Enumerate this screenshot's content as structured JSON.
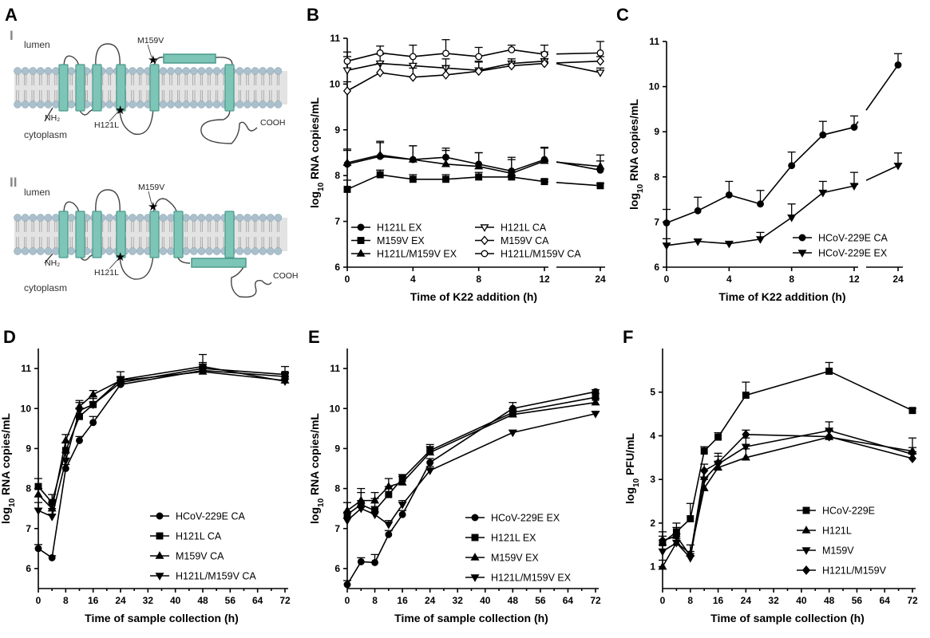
{
  "panel_labels": [
    "A",
    "B",
    "C",
    "D",
    "E",
    "F"
  ],
  "diagram": {
    "roman": [
      "I",
      "II"
    ],
    "lumen": "lumen",
    "cytoplasm": "cytoplasm",
    "nh2": "NH₂",
    "cooh": "COOH",
    "mut1": "M159V",
    "mut2": "H121L",
    "colors": {
      "helix": "#7dc5b7",
      "helix_dark": "#4b9a8c",
      "lipid_head": "#aac0cc",
      "star": "#e0207a"
    }
  },
  "chart_data": [
    {
      "id": "B",
      "type": "line",
      "panel": "B",
      "xlabel": "Time of K22 addition (h)",
      "ylabel": "log10 RNA copies/mL",
      "ylim": [
        6,
        11
      ],
      "yticks": [
        6,
        7,
        8,
        9,
        10,
        11
      ],
      "xticks": [
        0,
        4,
        8,
        12,
        24
      ],
      "x_break": true,
      "legend_position": "bottom",
      "legend_columns": 2,
      "series": [
        {
          "name": "H121L EX",
          "marker": "circle",
          "fill": "filled",
          "x": [
            0,
            2,
            4,
            6,
            8,
            10,
            12,
            24
          ],
          "y": [
            8.25,
            8.42,
            8.35,
            8.4,
            8.25,
            8.1,
            8.35,
            8.12
          ],
          "err": [
            0.3,
            0.3,
            0.3,
            0.2,
            0.25,
            0.3,
            0.25,
            0.2
          ]
        },
        {
          "name": "M159V EX",
          "marker": "square",
          "fill": "filled",
          "x": [
            0,
            2,
            4,
            6,
            8,
            10,
            12,
            24
          ],
          "y": [
            7.7,
            8.02,
            7.92,
            7.92,
            7.97,
            7.97,
            7.87,
            7.78
          ],
          "err": [
            0.2,
            0.1,
            0.1,
            0.1,
            0.1,
            0.1,
            0.05,
            0.05
          ]
        },
        {
          "name": "H121L/M159V EX",
          "marker": "triangle",
          "fill": "filled",
          "x": [
            0,
            2,
            4,
            6,
            8,
            10,
            12,
            24
          ],
          "y": [
            8.28,
            8.45,
            8.35,
            8.25,
            8.2,
            8.05,
            8.32,
            8.2
          ],
          "err": [
            0.3,
            0.3,
            0.3,
            0.3,
            0.3,
            0.3,
            0.3,
            0.25
          ]
        },
        {
          "name": "H121L CA",
          "marker": "triangle-down",
          "fill": "open",
          "x": [
            0,
            2,
            4,
            6,
            8,
            10,
            12,
            24
          ],
          "y": [
            10.3,
            10.45,
            10.4,
            10.35,
            10.3,
            10.45,
            10.5,
            10.25
          ],
          "err": [
            0.3,
            0.2,
            0.2,
            0.2,
            0.2,
            0.1,
            0.2,
            0.1
          ]
        },
        {
          "name": "M159V CA",
          "marker": "diamond",
          "fill": "open",
          "x": [
            0,
            2,
            4,
            6,
            8,
            10,
            12,
            24
          ],
          "y": [
            9.85,
            10.25,
            10.15,
            10.2,
            10.28,
            10.4,
            10.45,
            10.5
          ],
          "err": [
            0.2,
            0.2,
            0.2,
            0.2,
            0.2,
            0.1,
            0.1,
            0.1
          ]
        },
        {
          "name": "H121L/M159V CA",
          "marker": "circle",
          "fill": "open",
          "x": [
            0,
            2,
            4,
            6,
            8,
            10,
            12,
            24
          ],
          "y": [
            10.5,
            10.68,
            10.6,
            10.67,
            10.6,
            10.75,
            10.65,
            10.68
          ],
          "err": [
            0.2,
            0.15,
            0.25,
            0.3,
            0.2,
            0.1,
            0.2,
            0.25
          ]
        }
      ]
    },
    {
      "id": "C",
      "type": "line",
      "panel": "C",
      "xlabel": "Time of K22 addition (h)",
      "ylabel": "log10 RNA copies/mL",
      "ylim": [
        6,
        11
      ],
      "yticks": [
        6,
        7,
        8,
        9,
        10,
        11
      ],
      "xticks": [
        0,
        4,
        8,
        12,
        24
      ],
      "x_break": true,
      "legend_position": "bottom-right",
      "legend_columns": 1,
      "series": [
        {
          "name": "HCoV-229E CA",
          "marker": "circle",
          "fill": "filled",
          "x": [
            0,
            2,
            4,
            6,
            8,
            10,
            12,
            24
          ],
          "y": [
            6.98,
            7.25,
            7.6,
            7.4,
            8.25,
            8.93,
            9.1,
            10.48
          ],
          "err": [
            0.3,
            0.3,
            0.3,
            0.3,
            0.3,
            0.3,
            0.25,
            0.25
          ]
        },
        {
          "name": "HCoV-229E EX",
          "marker": "triangle-down",
          "fill": "filled",
          "x": [
            0,
            2,
            4,
            6,
            8,
            10,
            12,
            24
          ],
          "y": [
            6.48,
            6.57,
            6.52,
            6.62,
            7.1,
            7.65,
            7.8,
            8.25
          ],
          "err": [
            0.15,
            0.05,
            0.05,
            0.15,
            0.3,
            0.25,
            0.3,
            0.28
          ]
        }
      ]
    },
    {
      "id": "D",
      "type": "line",
      "panel": "D",
      "xlabel": "Time of sample collection (h)",
      "ylabel": "log10 RNA copies/mL",
      "ylim": [
        5.5,
        11.5
      ],
      "yticks": [
        6,
        7,
        8,
        9,
        10,
        11
      ],
      "xticks": [
        0,
        8,
        16,
        24,
        32,
        40,
        48,
        56,
        64,
        72
      ],
      "legend_position": "bottom-right",
      "legend_columns": 1,
      "series": [
        {
          "name": "HCoV-229E CA",
          "marker": "circle",
          "fill": "filled",
          "x": [
            0,
            4,
            8,
            12,
            16,
            24,
            48,
            72
          ],
          "y": [
            6.5,
            6.27,
            8.5,
            9.2,
            9.65,
            10.6,
            10.95,
            10.8
          ],
          "err": [
            0.1,
            0.05,
            0.1,
            0.1,
            0.15,
            0.1,
            0.1,
            0.1
          ]
        },
        {
          "name": "H121L CA",
          "marker": "square",
          "fill": "filled",
          "x": [
            0,
            4,
            8,
            12,
            16,
            24,
            48,
            72
          ],
          "y": [
            8.05,
            7.65,
            8.95,
            9.8,
            10.1,
            10.65,
            11.0,
            10.85
          ],
          "err": [
            0.2,
            0.2,
            0.2,
            0.2,
            0.15,
            0.15,
            0.15,
            0.2
          ]
        },
        {
          "name": "M159V CA",
          "marker": "triangle",
          "fill": "filled",
          "x": [
            0,
            4,
            8,
            12,
            16,
            24,
            48,
            72
          ],
          "y": [
            7.85,
            7.5,
            9.2,
            10.05,
            10.35,
            10.7,
            10.92,
            10.7
          ],
          "err": [
            0.15,
            0.15,
            0.15,
            0.15,
            0.1,
            0.1,
            0.1,
            0.1
          ]
        },
        {
          "name": "H121L/M159V CA",
          "marker": "triangle-down",
          "fill": "filled",
          "x": [
            0,
            4,
            8,
            12,
            16,
            24,
            48,
            72
          ],
          "y": [
            7.45,
            7.3,
            8.7,
            9.95,
            10.1,
            10.72,
            11.05,
            10.68
          ],
          "err": [
            0.2,
            0.2,
            0.2,
            0.2,
            0.2,
            0.2,
            0.3,
            0.2
          ]
        }
      ]
    },
    {
      "id": "E",
      "type": "line",
      "panel": "E",
      "xlabel": "Time of sample collection (h)",
      "ylabel": "log10 RNA copies/mL",
      "ylim": [
        5.5,
        11.5
      ],
      "yticks": [
        6,
        7,
        8,
        9,
        10,
        11
      ],
      "xticks": [
        0,
        8,
        16,
        24,
        32,
        40,
        48,
        56,
        64,
        72
      ],
      "legend_position": "bottom-right",
      "legend_columns": 1,
      "series": [
        {
          "name": "HCoV-229E EX",
          "marker": "circle",
          "fill": "filled",
          "x": [
            0,
            4,
            8,
            12,
            16,
            24,
            48,
            72
          ],
          "y": [
            5.6,
            6.17,
            6.15,
            6.85,
            7.35,
            8.65,
            10.0,
            10.42
          ],
          "err": [
            0.1,
            0.1,
            0.2,
            0.1,
            0.1,
            0.1,
            0.15,
            0.05
          ]
        },
        {
          "name": "H121L EX",
          "marker": "square",
          "fill": "filled",
          "x": [
            0,
            4,
            8,
            12,
            16,
            24,
            48,
            72
          ],
          "y": [
            7.35,
            7.6,
            7.45,
            7.85,
            8.25,
            8.95,
            9.9,
            10.28
          ],
          "err": [
            0.3,
            0.4,
            0.3,
            0.2,
            0.1,
            0.15,
            0.1,
            0.1
          ]
        },
        {
          "name": "M159V EX",
          "marker": "triangle",
          "fill": "filled",
          "x": [
            0,
            4,
            8,
            12,
            16,
            24,
            48,
            72
          ],
          "y": [
            7.45,
            7.7,
            7.7,
            8.05,
            8.15,
            8.9,
            9.85,
            10.15
          ],
          "err": [
            0.2,
            0.2,
            0.2,
            0.2,
            0.15,
            0.15,
            0.1,
            0.1
          ]
        },
        {
          "name": "H121L/M159V EX",
          "marker": "triangle-down",
          "fill": "filled",
          "x": [
            0,
            4,
            8,
            12,
            16,
            24,
            48,
            72
          ],
          "y": [
            7.2,
            7.5,
            7.35,
            7.1,
            7.6,
            8.45,
            9.4,
            9.87
          ],
          "err": [
            0.2,
            0.2,
            0.2,
            0.1,
            0.1,
            0.1,
            0.05,
            0.05
          ]
        }
      ]
    },
    {
      "id": "F",
      "type": "line",
      "panel": "F",
      "xlabel": "Time of sample collection (h)",
      "ylabel": "log10 PFU/mL",
      "ylim": [
        0.5,
        6.0
      ],
      "yticks": [
        1,
        2,
        3,
        4,
        5
      ],
      "xticks": [
        0,
        8,
        16,
        24,
        32,
        40,
        48,
        56,
        64,
        72
      ],
      "legend_position": "bottom-right",
      "legend_columns": 1,
      "series": [
        {
          "name": "HCoV-229E",
          "marker": "square",
          "fill": "filled",
          "x": [
            0,
            4,
            8,
            12,
            16,
            24,
            48,
            72
          ],
          "y": [
            1.55,
            1.8,
            2.1,
            3.65,
            3.97,
            4.93,
            5.48,
            4.58
          ],
          "err": [
            0.15,
            0.2,
            0.35,
            0.1,
            0.1,
            0.3,
            0.2,
            0.05
          ]
        },
        {
          "name": "H121L",
          "marker": "triangle",
          "fill": "filled",
          "x": [
            0,
            4,
            8,
            12,
            16,
            24,
            48,
            72
          ],
          "y": [
            1.0,
            1.55,
            1.3,
            2.8,
            3.27,
            3.5,
            3.97,
            3.65
          ],
          "err": [
            0.15,
            0.2,
            0.2,
            0.2,
            0.15,
            0.2,
            0.15,
            0.3
          ]
        },
        {
          "name": "M159V",
          "marker": "triangle-down",
          "fill": "filled",
          "x": [
            0,
            4,
            8,
            12,
            16,
            24,
            48,
            72
          ],
          "y": [
            1.35,
            1.55,
            1.2,
            3.0,
            3.35,
            3.75,
            4.12,
            3.58
          ],
          "err": [
            0.15,
            0.1,
            0.1,
            0.2,
            0.25,
            0.2,
            0.2,
            0.15
          ]
        },
        {
          "name": "H121L/M159V",
          "marker": "diamond",
          "fill": "filled",
          "x": [
            0,
            4,
            8,
            12,
            16,
            24,
            48,
            72
          ],
          "y": [
            1.6,
            1.7,
            1.25,
            3.2,
            3.38,
            4.03,
            3.98,
            3.48
          ],
          "err": [
            0.2,
            0.2,
            0.1,
            0.15,
            0.15,
            0.1,
            0.15,
            0.1
          ]
        }
      ]
    }
  ]
}
